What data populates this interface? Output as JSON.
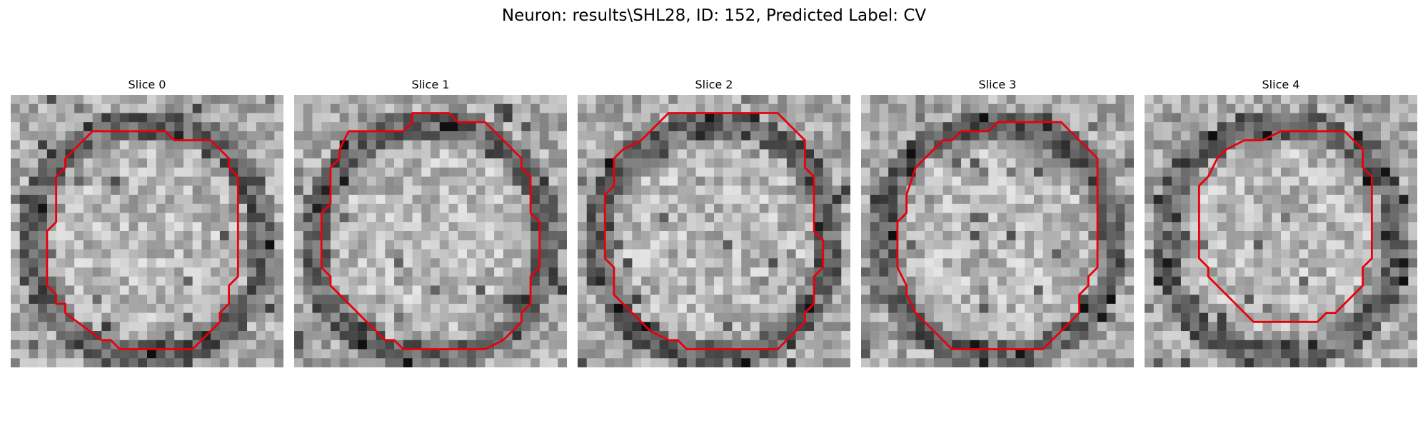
{
  "figure": {
    "title": "Neuron: results\\SHL28, ID: 152, Predicted Label: CV"
  },
  "panels": [
    {
      "title": "Slice 0"
    },
    {
      "title": "Slice 1"
    },
    {
      "title": "Slice 2"
    },
    {
      "title": "Slice 3"
    },
    {
      "title": "Slice 4"
    }
  ],
  "colors": {
    "contour": "#e8000b",
    "background": "#ffffff"
  }
}
